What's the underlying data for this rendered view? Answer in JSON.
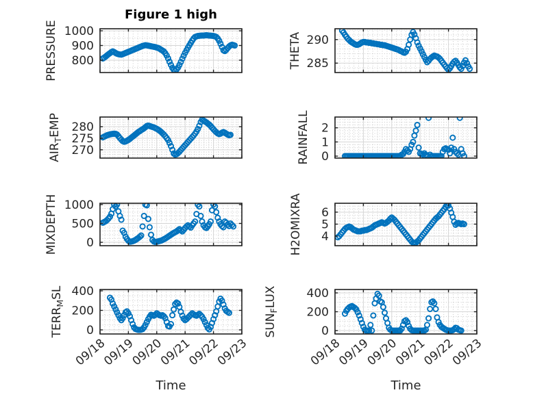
{
  "figure": {
    "title": "Figure 1 high",
    "background": "#ffffff"
  },
  "time_axis": {
    "title": "Time",
    "tick_labels": [
      "09/18",
      "09/19",
      "09/20",
      "09/21",
      "09/22",
      "09/23"
    ]
  },
  "style": {
    "marker_color": "#0072BD",
    "axis_color": "#212121",
    "tick_label_color": "#262626",
    "grid_color": "#d5d5d5",
    "minor_grid_color": "#c9c9c9",
    "background": "#ffffff"
  },
  "chart_data": [
    {
      "type": "scatter",
      "name": "pressure",
      "ylabel": "PRESSURE",
      "row": 0,
      "col": 0,
      "ylim": [
        716,
        1014
      ],
      "yticks": [
        800,
        900,
        1000
      ],
      "y_minor_step": 50,
      "x_minor_per_day": 6,
      "xlim_days": [
        0,
        5
      ],
      "x0": 0.1,
      "dx": 0.05,
      "y": [
        812,
        818,
        825,
        833,
        841,
        848,
        855,
        860,
        855,
        849,
        844,
        841,
        839,
        838,
        841,
        845,
        849,
        853,
        857,
        861,
        865,
        869,
        873,
        877,
        881,
        885,
        889,
        893,
        897,
        900,
        902,
        901,
        899,
        897,
        895,
        893,
        891,
        889,
        886,
        883,
        878,
        872,
        866,
        860,
        848,
        832,
        812,
        790,
        768,
        748,
        735,
        730,
        737,
        750,
        768,
        788,
        810,
        830,
        850,
        868,
        885,
        902,
        918,
        934,
        948,
        958,
        962,
        965,
        966,
        967,
        968,
        968,
        969,
        970,
        969,
        968,
        967,
        966,
        965,
        963,
        958,
        948,
        932,
        912,
        890,
        868,
        862,
        870,
        882,
        893,
        901,
        905,
        903,
        900
      ]
    },
    {
      "type": "scatter",
      "name": "theta",
      "ylabel": "THETA",
      "row": 0,
      "col": 1,
      "ylim": [
        283.0,
        292.3
      ],
      "yticks": [
        285,
        290
      ],
      "y_minor_step": 1,
      "x_minor_per_day": 6,
      "xlim_days": [
        0,
        5
      ],
      "x0": 0.25,
      "dx": 0.05,
      "y": [
        291.9,
        291.5,
        291.0,
        290.6,
        290.2,
        289.9,
        289.6,
        289.4,
        289.2,
        289.0,
        288.9,
        288.9,
        289.0,
        289.2,
        289.4,
        289.5,
        289.5,
        289.4,
        289.4,
        289.3,
        289.3,
        289.2,
        289.2,
        289.1,
        289.1,
        289.0,
        289.0,
        288.9,
        288.9,
        288.8,
        288.8,
        288.7,
        288.6,
        288.5,
        288.4,
        288.3,
        288.2,
        288.1,
        288.0,
        287.9,
        287.8,
        287.6,
        287.5,
        287.3,
        287.2,
        287.4,
        288.0,
        288.9,
        290.0,
        291.0,
        291.6,
        291.1,
        290.3,
        289.4,
        288.7,
        288.1,
        287.5,
        286.9,
        286.3,
        285.7,
        285.2,
        285.5,
        285.9,
        286.2,
        286.4,
        286.6,
        286.5,
        286.4,
        286.2,
        285.9,
        285.5,
        285.1,
        284.7,
        284.3,
        283.9,
        283.6,
        283.9,
        284.4,
        284.9,
        285.3,
        285.5,
        285.1,
        284.6,
        284.1,
        283.8,
        284.4,
        285.1,
        285.6,
        285.0,
        284.3,
        283.8
      ]
    },
    {
      "type": "scatter",
      "name": "air_temp",
      "ylabel": "AIR_TEMP",
      "row": 1,
      "col": 0,
      "ylim": [
        266.4,
        284.2
      ],
      "yticks": [
        270,
        275,
        280
      ],
      "y_minor_step": 1,
      "x_minor_per_day": 6,
      "xlim_days": [
        0,
        5
      ],
      "x0": 0.1,
      "dx": 0.05,
      "y": [
        275.4,
        275.7,
        276.0,
        276.3,
        276.5,
        276.7,
        276.8,
        276.9,
        277.0,
        276.9,
        276.6,
        275.9,
        275.1,
        274.4,
        273.8,
        273.5,
        273.6,
        273.9,
        274.3,
        274.7,
        275.2,
        275.7,
        276.2,
        276.7,
        277.2,
        277.7,
        278.1,
        278.5,
        278.9,
        279.3,
        279.8,
        280.3,
        280.5,
        280.3,
        280.1,
        279.9,
        279.7,
        279.4,
        279.1,
        278.7,
        278.3,
        277.8,
        277.2,
        276.6,
        275.9,
        275.1,
        274.2,
        273.0,
        271.6,
        270.0,
        268.4,
        267.9,
        268.1,
        268.6,
        269.2,
        269.9,
        270.6,
        271.3,
        272.0,
        272.7,
        273.4,
        274.1,
        274.8,
        275.5,
        276.2,
        277.0,
        277.9,
        279.0,
        280.4,
        282.0,
        283.0,
        282.7,
        282.3,
        281.9,
        281.4,
        280.9,
        280.3,
        279.6,
        278.9,
        278.2,
        277.6,
        277.1,
        276.8,
        277.0,
        277.4,
        277.7,
        277.4,
        277.0,
        276.6,
        276.3,
        276.5
      ]
    },
    {
      "type": "scatter",
      "name": "rainfall",
      "ylabel": "RAINFALL",
      "row": 1,
      "col": 1,
      "ylim": [
        -0.14,
        2.76
      ],
      "yticks": [
        0,
        1,
        2
      ],
      "y_minor_step": 0.2,
      "x_minor_per_day": 6,
      "xlim_days": [
        0,
        5
      ],
      "x0": 0.35,
      "dx": 0.05,
      "y": [
        0,
        0,
        0,
        0,
        0,
        0,
        0,
        0,
        0,
        0,
        0,
        0,
        0,
        0,
        0,
        0,
        0,
        0,
        0,
        0,
        0,
        0,
        0,
        0,
        0,
        0,
        0,
        0,
        0,
        0,
        0,
        0,
        0,
        0,
        0,
        0,
        0,
        0,
        0,
        0,
        0.1,
        0.15,
        0.3,
        0.5,
        0.4,
        0.3,
        0.5,
        0.8,
        1.0,
        1.45,
        1.8,
        2.2,
        0.6,
        0.2,
        0.15,
        0.1,
        0.2,
        0.1,
        0.05,
        2.7,
        0.1,
        0,
        0,
        0,
        0,
        0,
        0,
        0,
        0,
        0.3,
        0.5,
        0.55,
        0.5,
        0.45,
        0.2,
        0.6,
        1.3,
        0.5,
        0.3,
        0.2,
        0.1,
        2.7,
        0.5,
        0.2,
        0
      ]
    },
    {
      "type": "scatter",
      "name": "mixdepth",
      "ylabel": "MIXDEPTH",
      "row": 2,
      "col": 0,
      "ylim": [
        -90,
        1035
      ],
      "yticks": [
        0,
        500,
        1000
      ],
      "y_minor_step": 100,
      "x_minor_per_day": 6,
      "xlim_days": [
        0,
        5
      ],
      "x0": 0.1,
      "dx": 0.05,
      "y": [
        520,
        540,
        560,
        590,
        630,
        680,
        760,
        880,
        1000,
        950,
        1000,
        820,
        700,
        600,
        310,
        250,
        150,
        90,
        40,
        15,
        20,
        30,
        45,
        65,
        90,
        115,
        145,
        180,
        420,
        700,
        1000,
        980,
        620,
        400,
        200,
        60,
        20,
        10,
        15,
        25,
        35,
        45,
        60,
        80,
        100,
        125,
        150,
        175,
        200,
        225,
        250,
        270,
        290,
        320,
        350,
        320,
        290,
        330,
        380,
        420,
        450,
        420,
        390,
        450,
        500,
        550,
        750,
        1000,
        950,
        700,
        550,
        450,
        400,
        380,
        420,
        480,
        550,
        850,
        1000,
        950,
        800,
        650,
        550,
        480,
        430,
        400,
        550,
        520,
        470,
        430,
        500,
        460,
        420
      ]
    },
    {
      "type": "scatter",
      "name": "h2omixra",
      "ylabel": "H2OMIXRA",
      "row": 2,
      "col": 1,
      "ylim": [
        3.2,
        6.74
      ],
      "yticks": [
        4,
        5,
        6
      ],
      "y_minor_step": 0.25,
      "x_minor_per_day": 6,
      "xlim_days": [
        0,
        5
      ],
      "x0": 0.1,
      "dx": 0.05,
      "y": [
        3.9,
        4.0,
        4.15,
        4.3,
        4.45,
        4.6,
        4.7,
        4.75,
        4.8,
        4.75,
        4.65,
        4.55,
        4.5,
        4.45,
        4.4,
        4.4,
        4.4,
        4.45,
        4.45,
        4.5,
        4.5,
        4.55,
        4.6,
        4.65,
        4.7,
        4.8,
        4.9,
        4.95,
        5.0,
        5.05,
        5.1,
        5.15,
        5.1,
        5.05,
        5.1,
        5.2,
        5.3,
        5.45,
        5.55,
        5.45,
        5.35,
        5.2,
        5.05,
        4.9,
        4.75,
        4.6,
        4.45,
        4.3,
        4.15,
        4.0,
        3.85,
        3.7,
        3.55,
        3.45,
        3.4,
        3.45,
        3.55,
        3.65,
        3.8,
        3.95,
        4.1,
        4.25,
        4.4,
        4.55,
        4.7,
        4.85,
        5.0,
        5.15,
        5.3,
        5.45,
        5.55,
        5.65,
        5.8,
        5.95,
        6.1,
        6.25,
        6.45,
        6.6,
        6.55,
        6.3,
        5.95,
        5.6,
        5.2,
        4.95,
        5.05,
        5.1,
        5.05,
        5.0,
        5.05,
        5.0
      ]
    },
    {
      "type": "scatter",
      "name": "terr_msl",
      "ylabel": "TERR_MSL",
      "row": 3,
      "col": 0,
      "ylim": [
        -42,
        414
      ],
      "yticks": [
        0,
        200,
        400
      ],
      "y_minor_step": 50,
      "x_minor_per_day": 6,
      "xlim_days": [
        0,
        5
      ],
      "x0": 0.35,
      "dx": 0.05,
      "y": [
        330,
        310,
        270,
        240,
        210,
        180,
        150,
        120,
        100,
        120,
        150,
        180,
        190,
        170,
        140,
        100,
        60,
        25,
        10,
        4,
        0,
        0,
        2,
        8,
        25,
        50,
        80,
        110,
        135,
        155,
        150,
        145,
        155,
        170,
        160,
        150,
        145,
        150,
        140,
        120,
        80,
        40,
        35,
        60,
        150,
        210,
        265,
        280,
        270,
        235,
        185,
        145,
        115,
        100,
        110,
        125,
        140,
        155,
        170,
        160,
        150,
        145,
        155,
        165,
        150,
        135,
        110,
        80,
        50,
        20,
        5,
        30,
        70,
        110,
        150,
        190,
        240,
        290,
        320,
        300,
        260,
        220,
        195,
        185,
        175
      ]
    },
    {
      "type": "scatter",
      "name": "sun_flux",
      "ylabel": "SUN_FLUX",
      "row": 3,
      "col": 1,
      "ylim": [
        -36,
        436
      ],
      "yticks": [
        0,
        200,
        400
      ],
      "y_minor_step": 50,
      "x_minor_per_day": 6,
      "xlim_days": [
        0,
        5
      ],
      "x0": 0.35,
      "dx": 0.05,
      "y": [
        180,
        210,
        230,
        245,
        255,
        260,
        250,
        240,
        225,
        195,
        160,
        120,
        80,
        40,
        10,
        0,
        0,
        0,
        60,
        0,
        160,
        290,
        340,
        390,
        370,
        310,
        300,
        250,
        190,
        130,
        80,
        30,
        10,
        0,
        0,
        0,
        0,
        0,
        0,
        0,
        20,
        60,
        100,
        110,
        90,
        50,
        20,
        5,
        0,
        0,
        0,
        0,
        0,
        0,
        0,
        0,
        0,
        10,
        60,
        130,
        230,
        300,
        310,
        290,
        230,
        140,
        90,
        60,
        40,
        30,
        20,
        10,
        5,
        0,
        0,
        0,
        5,
        15,
        30,
        25,
        10,
        5,
        0
      ]
    }
  ]
}
